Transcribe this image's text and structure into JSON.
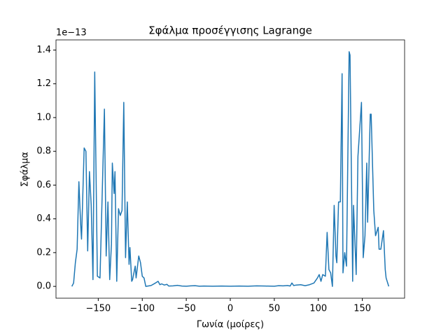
{
  "chart_data": {
    "type": "line",
    "title": "Σφάλμα προσέγγισης Lagrange",
    "x_label": "Γωνία (μοίρες)",
    "y_label": "Σφάλμα",
    "y_offset_label": "1e−13",
    "x": [
      -180,
      -178,
      -176,
      -174,
      -172,
      -170,
      -169,
      -166,
      -164,
      -162,
      -160,
      -158,
      -156,
      -154,
      -151,
      -148,
      -146,
      -143,
      -141,
      -139,
      -137,
      -135,
      -134,
      -132,
      -131,
      -129,
      -127,
      -125,
      -123,
      -121,
      -119,
      -117,
      -115,
      -114,
      -112,
      -111,
      -108,
      -107,
      -104,
      -102,
      -100,
      -98,
      -96,
      -90,
      -85,
      -82,
      -80,
      -78,
      -75,
      -72,
      -70,
      -65,
      -60,
      -55,
      -50,
      -45,
      -40,
      -35,
      -30,
      -20,
      -10,
      0,
      10,
      20,
      30,
      40,
      50,
      55,
      60,
      65,
      68,
      70,
      72,
      75,
      80,
      85,
      90,
      95,
      99,
      101,
      103,
      105,
      108,
      110,
      112,
      114,
      116,
      118,
      120,
      121,
      123,
      125,
      127,
      128,
      130,
      132,
      135,
      136,
      139,
      140,
      143,
      145,
      149,
      151,
      153,
      155,
      156,
      159,
      160,
      163,
      165,
      168,
      169,
      171,
      174,
      176,
      177,
      180
    ],
    "series": [
      {
        "name": "Σφάλμα",
        "color": "#1f77b4",
        "values": [
          0,
          0.02,
          0.14,
          0.22,
          0.62,
          0.37,
          0.28,
          0.82,
          0.8,
          0.21,
          0.68,
          0.48,
          0.04,
          1.27,
          0.06,
          0.05,
          0.45,
          1.05,
          0.18,
          0.5,
          0.04,
          0.25,
          0.73,
          0.55,
          0.68,
          0.03,
          0.46,
          0.42,
          0.45,
          1.09,
          0.17,
          0.5,
          0.13,
          0.23,
          0.03,
          0.04,
          0.12,
          0.05,
          0.18,
          0.14,
          0.06,
          0.05,
          0,
          0.005,
          0.02,
          0.03,
          0.01,
          0.015,
          0.008,
          0.012,
          0.002,
          0.003,
          0.006,
          0.002,
          0.001,
          0.003,
          0.004,
          0.001,
          0.002,
          0.001,
          0.002,
          0.001,
          0.002,
          0.001,
          0.003,
          0.002,
          0.001,
          0.004,
          0.003,
          0.005,
          0.002,
          0.02,
          0.005,
          0.008,
          0.01,
          0.004,
          0.01,
          0.02,
          0.05,
          0.07,
          0.03,
          0.07,
          0.06,
          0.32,
          0.1,
          0.08,
          0,
          0.48,
          0.18,
          0.14,
          0.5,
          0.5,
          1.26,
          0.08,
          0.2,
          0.12,
          1.39,
          1.37,
          0.03,
          0.48,
          0.07,
          0.77,
          1.09,
          0.17,
          0.3,
          0.73,
          0.38,
          1.02,
          1.02,
          0.45,
          0.3,
          0.35,
          0.22,
          0.22,
          0.33,
          0.1,
          0.05,
          0
        ]
      }
    ],
    "xlim": [
      -198,
      198
    ],
    "ylim": [
      -0.07,
      1.46
    ],
    "xticks": [
      {
        "value": -150,
        "label": "−150"
      },
      {
        "value": -100,
        "label": "−100"
      },
      {
        "value": -50,
        "label": "−50"
      },
      0,
      50,
      100,
      150
    ],
    "yticks": [
      {
        "value": 0,
        "label": "0.0"
      },
      0.2,
      0.4,
      0.6,
      0.8,
      {
        "value": 1,
        "label": "1.0"
      },
      1.2,
      1.4
    ],
    "grid": false
  }
}
